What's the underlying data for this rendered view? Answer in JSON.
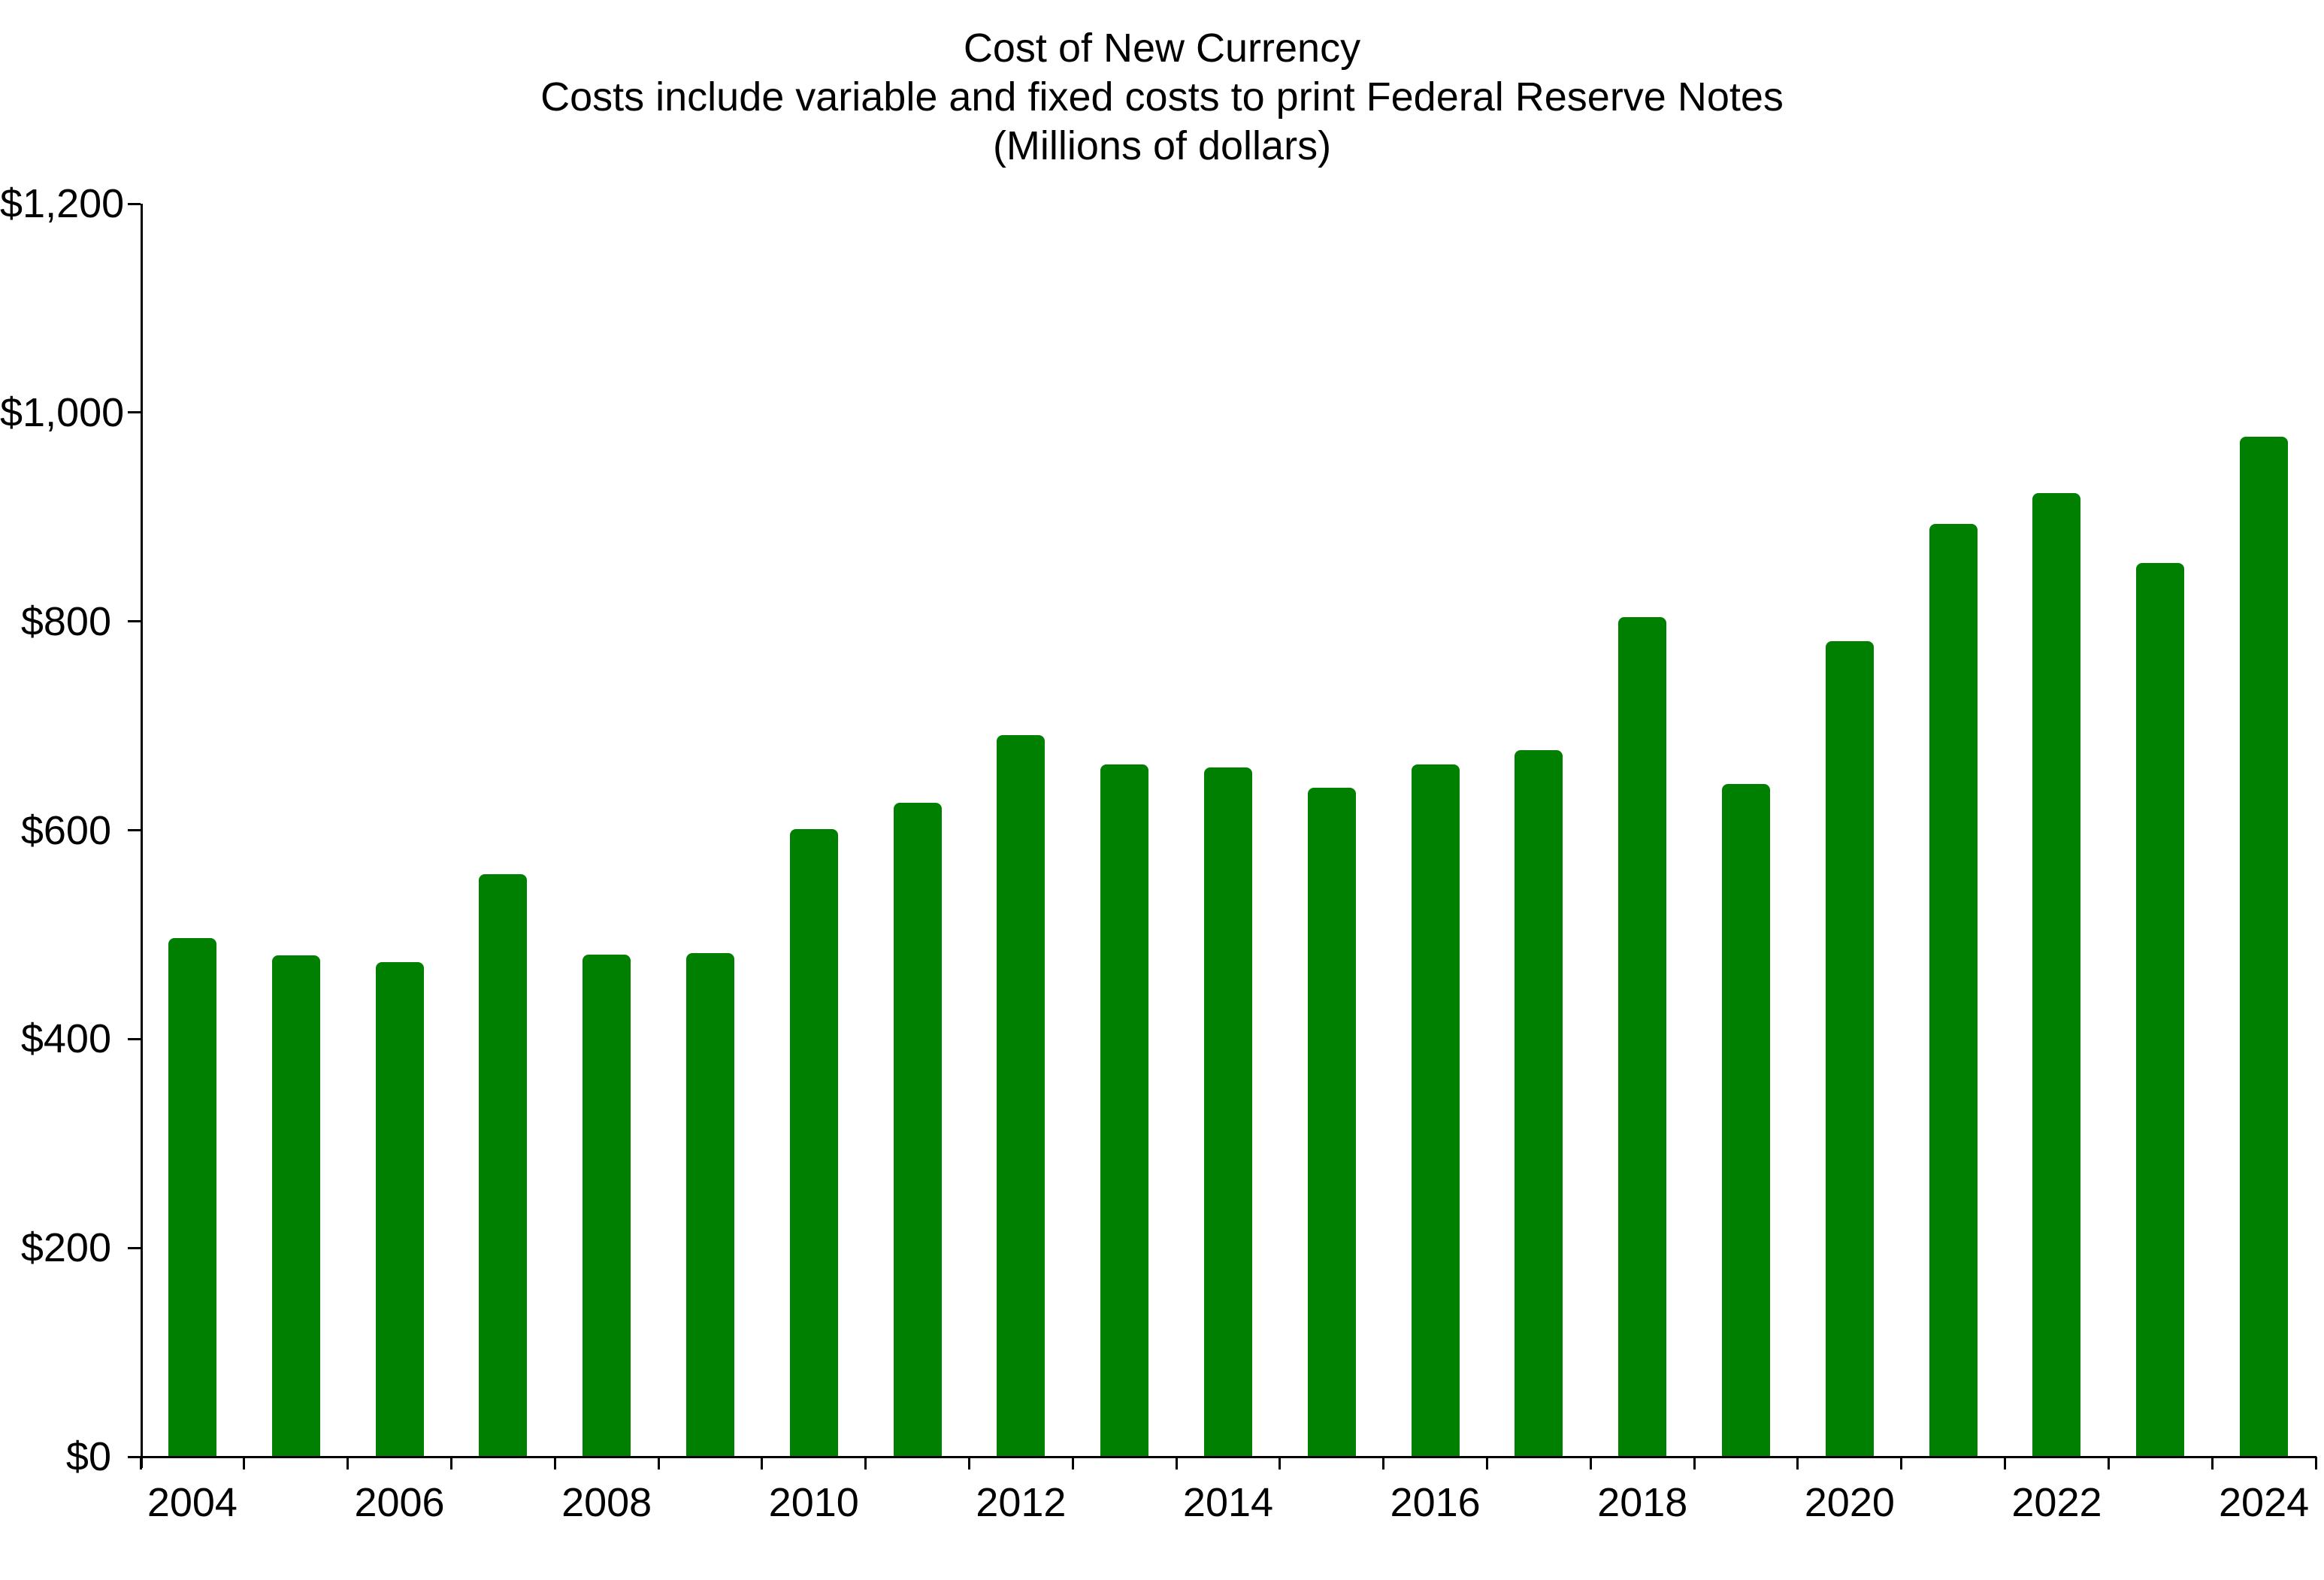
{
  "title": {
    "line1": "Cost of New Currency",
    "line2": "Costs include variable and fixed costs to print Federal Reserve Notes",
    "line3": "(Millions of dollars)"
  },
  "colors": {
    "bar": "#008000",
    "axis": "#000000",
    "text": "#000000",
    "background": "#ffffff"
  },
  "chart_data": {
    "type": "bar",
    "title": "Cost of New Currency",
    "subtitle": "Costs include variable and fixed costs to print Federal Reserve Notes",
    "units_label": "(Millions of dollars)",
    "xlabel": "",
    "ylabel": "",
    "grid": false,
    "legend": false,
    "ylim": [
      0,
      1200
    ],
    "categories": [
      "2004",
      "2005",
      "2006",
      "2007",
      "2008",
      "2009",
      "2010",
      "2011",
      "2012",
      "2013",
      "2014",
      "2015",
      "2016",
      "2017",
      "2018",
      "2019",
      "2020",
      "2021",
      "2022",
      "2023",
      "2024"
    ],
    "values": [
      497,
      480,
      474,
      558,
      481,
      482,
      601,
      626,
      691,
      663,
      660,
      641,
      663,
      677,
      804,
      644,
      781,
      893,
      923,
      856,
      977
    ],
    "y_ticks": [
      {
        "value": 0,
        "label": "$0"
      },
      {
        "value": 200,
        "label": "$200"
      },
      {
        "value": 400,
        "label": "$400"
      },
      {
        "value": 600,
        "label": "$600"
      },
      {
        "value": 800,
        "label": "$800"
      },
      {
        "value": 1000,
        "label": "$1,000"
      },
      {
        "value": 1200,
        "label": "$1,200"
      }
    ],
    "x_tick_labels": [
      "2004",
      "2006",
      "2008",
      "2010",
      "2012",
      "2014",
      "2016",
      "2018",
      "2020",
      "2022",
      "2024"
    ]
  }
}
